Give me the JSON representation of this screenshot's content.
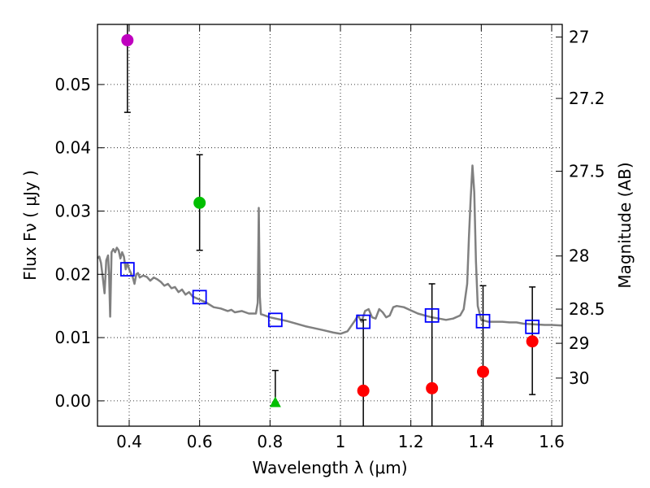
{
  "chart_data": {
    "type": "scatter",
    "title": "",
    "xlabel": "Wavelength  λ (μm)",
    "ylabel": "Flux  Fν  ( μJy )",
    "ylabel_right": "Magnitude (AB)",
    "xlim": [
      0.31,
      1.63
    ],
    "ylim": [
      -0.004,
      0.0595
    ],
    "x_ticks": [
      0.4,
      0.6,
      0.8,
      1.0,
      1.2,
      1.4,
      1.6
    ],
    "x_tick_labels": [
      "0.4",
      "0.6",
      "0.8",
      "1",
      "1.2",
      "1.4",
      "1.6"
    ],
    "y_ticks": [
      0.0,
      0.01,
      0.02,
      0.03,
      0.04,
      0.05
    ],
    "y_tick_labels": [
      "0.00",
      "0.01",
      "0.02",
      "0.03",
      "0.04",
      "0.05"
    ],
    "right_ticks": [
      {
        "label": "27",
        "flux": 0.0575
      },
      {
        "label": "27.2",
        "flux": 0.0478
      },
      {
        "label": "27.5",
        "flux": 0.0363
      },
      {
        "label": "28",
        "flux": 0.0229
      },
      {
        "label": "28.5",
        "flux": 0.0145
      },
      {
        "label": "29",
        "flux": 0.0091
      },
      {
        "label": "30",
        "flux": 0.0036
      }
    ],
    "grid": true,
    "series": [
      {
        "name": "observed",
        "marker": "circle",
        "points": [
          {
            "x": 0.395,
            "y": 0.057,
            "err_low": 0.0456,
            "err_high": 0.0595,
            "color": "#bf00bf"
          },
          {
            "x": 0.6,
            "y": 0.0313,
            "err_low": 0.0238,
            "err_high": 0.0389,
            "color": "#00bf00"
          },
          {
            "x": 1.065,
            "y": 0.0016,
            "err_low": -0.004,
            "err_high": 0.0128,
            "color": "#ff0000"
          },
          {
            "x": 1.26,
            "y": 0.002,
            "err_low": -0.004,
            "err_high": 0.0185,
            "color": "#ff0000"
          },
          {
            "x": 1.405,
            "y": 0.0046,
            "err_low": -0.004,
            "err_high": 0.0182,
            "color": "#ff0000"
          },
          {
            "x": 1.545,
            "y": 0.0094,
            "err_low": 0.001,
            "err_high": 0.018,
            "color": "#ff0000"
          }
        ]
      },
      {
        "name": "upper-limit",
        "marker": "triangle",
        "points": [
          {
            "x": 0.815,
            "y": -0.0002,
            "err_low": -0.0002,
            "err_high": 0.0048,
            "color": "#00bf00"
          }
        ]
      },
      {
        "name": "model-photometry",
        "marker": "open-square",
        "color": "#0000ff",
        "points": [
          {
            "x": 0.395,
            "y": 0.0208
          },
          {
            "x": 0.6,
            "y": 0.0164
          },
          {
            "x": 0.815,
            "y": 0.0128
          },
          {
            "x": 1.065,
            "y": 0.0125
          },
          {
            "x": 1.26,
            "y": 0.0135
          },
          {
            "x": 1.405,
            "y": 0.0126
          },
          {
            "x": 1.545,
            "y": 0.0117
          }
        ]
      },
      {
        "name": "model-spectrum",
        "type": "line",
        "color": "#808080",
        "x": [
          0.31,
          0.315,
          0.32,
          0.325,
          0.33,
          0.335,
          0.34,
          0.343,
          0.346,
          0.35,
          0.355,
          0.36,
          0.365,
          0.37,
          0.375,
          0.38,
          0.385,
          0.39,
          0.395,
          0.4,
          0.41,
          0.415,
          0.42,
          0.425,
          0.43,
          0.44,
          0.45,
          0.46,
          0.47,
          0.48,
          0.49,
          0.5,
          0.51,
          0.52,
          0.53,
          0.54,
          0.55,
          0.56,
          0.57,
          0.58,
          0.6,
          0.62,
          0.64,
          0.66,
          0.68,
          0.69,
          0.7,
          0.72,
          0.74,
          0.76,
          0.765,
          0.768,
          0.771,
          0.774,
          0.78,
          0.8,
          0.85,
          0.9,
          0.95,
          0.98,
          1.0,
          1.02,
          1.04,
          1.05,
          1.06,
          1.07,
          1.08,
          1.09,
          1.1,
          1.11,
          1.12,
          1.13,
          1.14,
          1.15,
          1.16,
          1.18,
          1.2,
          1.22,
          1.24,
          1.26,
          1.28,
          1.3,
          1.32,
          1.34,
          1.35,
          1.36,
          1.365,
          1.37,
          1.375,
          1.38,
          1.385,
          1.39,
          1.4,
          1.42,
          1.44,
          1.46,
          1.48,
          1.5,
          1.52,
          1.55,
          1.58,
          1.6,
          1.63
        ],
        "y": [
          0.0225,
          0.0228,
          0.0218,
          0.0195,
          0.017,
          0.0222,
          0.023,
          0.0198,
          0.0133,
          0.0235,
          0.024,
          0.0235,
          0.0242,
          0.0238,
          0.0225,
          0.0235,
          0.0228,
          0.0208,
          0.0218,
          0.0208,
          0.0196,
          0.0185,
          0.02,
          0.0202,
          0.0195,
          0.0198,
          0.0196,
          0.019,
          0.0195,
          0.0192,
          0.0188,
          0.0182,
          0.0185,
          0.0178,
          0.018,
          0.0172,
          0.0176,
          0.0168,
          0.0172,
          0.0165,
          0.016,
          0.0155,
          0.0148,
          0.0146,
          0.0142,
          0.0144,
          0.014,
          0.0142,
          0.0138,
          0.0138,
          0.0155,
          0.0305,
          0.0165,
          0.0137,
          0.0136,
          0.0132,
          0.0126,
          0.0118,
          0.0112,
          0.0108,
          0.0106,
          0.011,
          0.0126,
          0.0135,
          0.0125,
          0.0142,
          0.0145,
          0.0132,
          0.013,
          0.0145,
          0.014,
          0.0132,
          0.0135,
          0.0148,
          0.015,
          0.0148,
          0.0143,
          0.0138,
          0.0135,
          0.0132,
          0.013,
          0.0128,
          0.013,
          0.0135,
          0.0145,
          0.0185,
          0.026,
          0.032,
          0.0372,
          0.033,
          0.022,
          0.015,
          0.0128,
          0.0125,
          0.0125,
          0.0125,
          0.0124,
          0.0124,
          0.0122,
          0.0121,
          0.012,
          0.012,
          0.0119
        ]
      }
    ]
  }
}
